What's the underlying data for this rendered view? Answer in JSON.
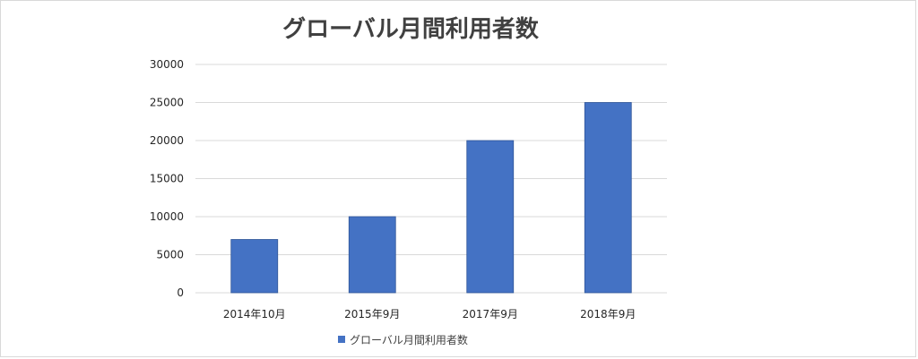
{
  "chart_data": {
    "type": "bar",
    "title": "グローバル月間利用者数",
    "categories": [
      "2014年10月",
      "2015年9月",
      "2017年9月",
      "2018年9月"
    ],
    "series": [
      {
        "name": "グローバル月間利用者数",
        "values": [
          7000,
          10000,
          20000,
          25000
        ]
      }
    ],
    "ylim": [
      0,
      30000
    ],
    "yticks": [
      0,
      5000,
      10000,
      15000,
      20000,
      25000,
      30000
    ],
    "grid": true,
    "legend": "bottom",
    "colors": {
      "bar": "#4472C4",
      "bar_edge": "#2F5597",
      "grid": "#D9D9D9"
    }
  }
}
